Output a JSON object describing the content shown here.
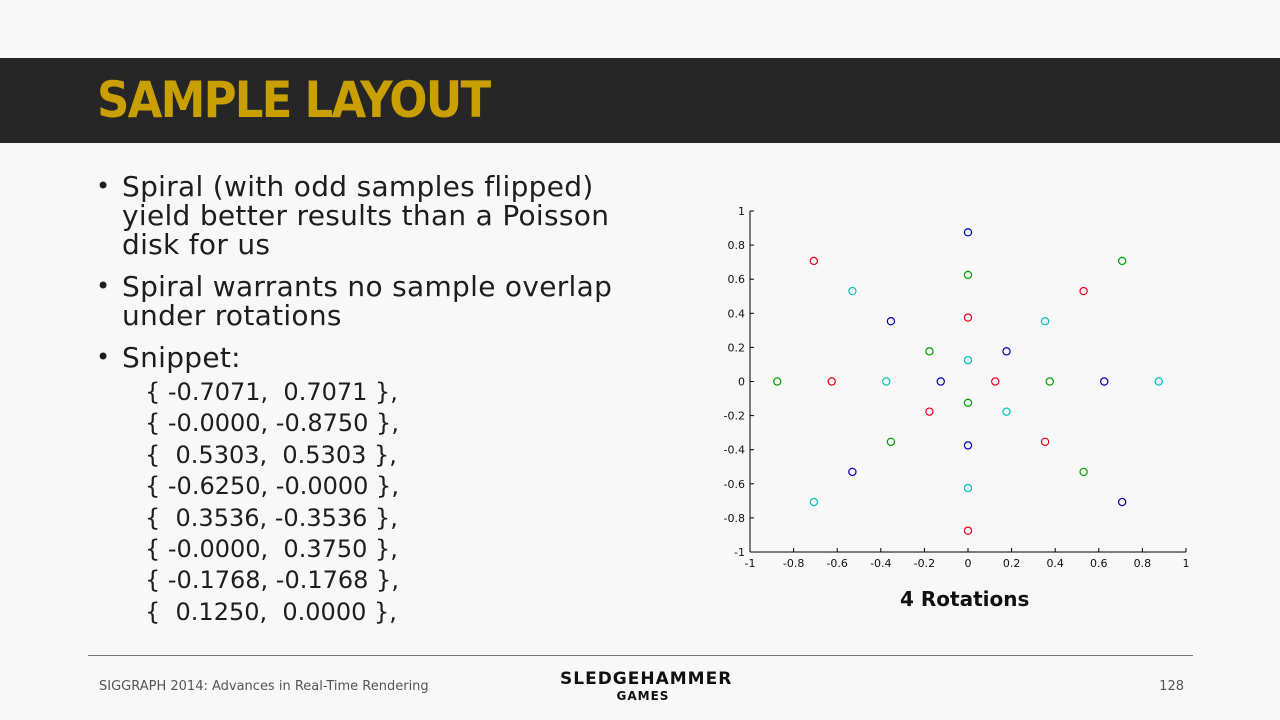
{
  "slide": {
    "title": "SAMPLE LAYOUT",
    "bullets": [
      {
        "text": "Spiral (with odd samples flipped) yield better results than a Poisson disk for us"
      },
      {
        "text": "Spiral warrants no sample overlap under rotations"
      },
      {
        "text": "Snippet:"
      }
    ],
    "bullet_symbol": "•",
    "snippet_lines": [
      "{ -0.7071,  0.7071 },",
      "{ -0.0000, -0.8750 },",
      "{  0.5303,  0.5303 },",
      "{ -0.6250, -0.0000 },",
      "{  0.3536, -0.3536 },",
      "{ -0.0000,  0.3750 },",
      "{ -0.1768, -0.1768 },",
      "{  0.1250,  0.0000 },"
    ]
  },
  "footer": {
    "conference": "SIGGRAPH 2014: Advances in Real-Time Rendering",
    "logo_main": "SLEDGEHAMMER",
    "logo_sub": "GAMES",
    "page_number": "128"
  },
  "colors": {
    "title_bar": "#262626",
    "title_text": "#c9a000"
  },
  "chart_data": {
    "type": "scatter",
    "title": "4 Rotations",
    "xlabel": "",
    "ylabel": "",
    "xlim": [
      -1,
      1
    ],
    "ylim": [
      -1,
      1
    ],
    "grid": false,
    "marker": "open-circle",
    "x_ticks": [
      "-1",
      "-0.8",
      "-0.6",
      "-0.4",
      "-0.2",
      "0",
      "0.2",
      "0.4",
      "0.6",
      "0.8",
      "1"
    ],
    "y_ticks": [
      "1",
      "0.8",
      "0.6",
      "0.4",
      "0.2",
      "0",
      "-0.2",
      "-0.4",
      "-0.6",
      "-0.8",
      "-1"
    ],
    "series": [
      {
        "color": "#e8001c",
        "points": [
          {
            "x": -0.7071,
            "y": 0.7071
          },
          {
            "x": 0.0,
            "y": -0.875
          },
          {
            "x": 0.5303,
            "y": 0.5303
          },
          {
            "x": -0.625,
            "y": 0.0
          },
          {
            "x": 0.3536,
            "y": -0.3536
          },
          {
            "x": 0.0,
            "y": 0.375
          },
          {
            "x": -0.1768,
            "y": -0.1768
          },
          {
            "x": 0.125,
            "y": 0.0
          }
        ]
      },
      {
        "color": "#00a000",
        "points": [
          {
            "x": 0.7071,
            "y": 0.7071
          },
          {
            "x": -0.875,
            "y": 0.0
          },
          {
            "x": 0.5303,
            "y": -0.5303
          },
          {
            "x": 0.0,
            "y": 0.625
          },
          {
            "x": -0.3536,
            "y": -0.3536
          },
          {
            "x": 0.375,
            "y": 0.0
          },
          {
            "x": -0.1768,
            "y": 0.1768
          },
          {
            "x": 0.0,
            "y": -0.125
          }
        ]
      },
      {
        "color": "#0000b4",
        "points": [
          {
            "x": 0.7071,
            "y": -0.7071
          },
          {
            "x": 0.0,
            "y": 0.875
          },
          {
            "x": -0.5303,
            "y": -0.5303
          },
          {
            "x": 0.625,
            "y": 0.0
          },
          {
            "x": -0.3536,
            "y": 0.3536
          },
          {
            "x": 0.0,
            "y": -0.375
          },
          {
            "x": 0.1768,
            "y": 0.1768
          },
          {
            "x": -0.125,
            "y": 0.0
          }
        ]
      },
      {
        "color": "#00c0c0",
        "points": [
          {
            "x": -0.7071,
            "y": -0.7071
          },
          {
            "x": 0.875,
            "y": 0.0
          },
          {
            "x": -0.5303,
            "y": 0.5303
          },
          {
            "x": 0.0,
            "y": -0.625
          },
          {
            "x": 0.3536,
            "y": 0.3536
          },
          {
            "x": -0.375,
            "y": 0.0
          },
          {
            "x": 0.1768,
            "y": -0.1768
          },
          {
            "x": 0.0,
            "y": 0.125
          }
        ]
      }
    ]
  }
}
